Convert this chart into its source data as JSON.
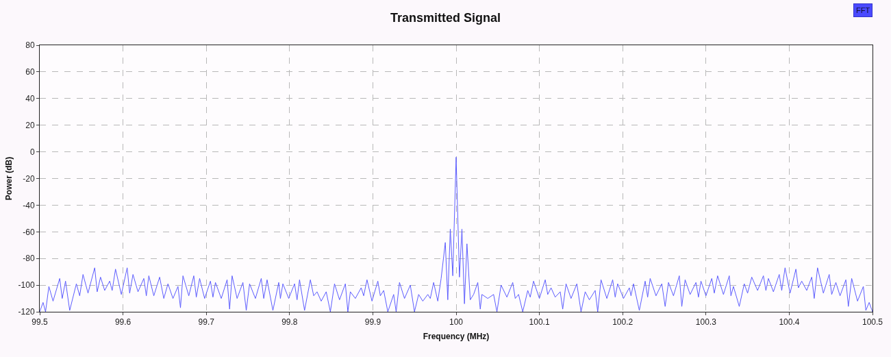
{
  "chart_data": {
    "type": "line",
    "title": "Transmitted Signal",
    "xlabel": "Frequency (MHz)",
    "ylabel": "Power (dB)",
    "annotations": [
      "FFT"
    ],
    "xlim": [
      99.5,
      100.5
    ],
    "xticks": [
      99.5,
      99.6,
      99.7,
      99.8,
      99.9,
      100,
      100.1,
      100.2,
      100.3,
      100.4,
      100.5
    ],
    "ylim": [
      -120,
      80
    ],
    "yticks": [
      -120,
      -100,
      -80,
      -60,
      -40,
      -20,
      0,
      20,
      40,
      60,
      80
    ],
    "grid": true,
    "marker": "none",
    "line_style": "solid",
    "series": [
      {
        "color": "#5c5cff",
        "x": [
          99.5,
          99.504,
          99.507,
          99.511,
          99.516,
          99.524,
          99.527,
          99.531,
          99.536,
          99.544,
          99.548,
          99.552,
          99.558,
          99.566,
          99.569,
          99.573,
          99.578,
          99.584,
          99.587,
          99.591,
          99.598,
          99.605,
          99.608,
          99.612,
          99.618,
          99.625,
          99.628,
          99.631,
          99.637,
          99.644,
          99.649,
          99.654,
          99.66,
          99.666,
          99.669,
          99.672,
          99.679,
          99.685,
          99.688,
          99.692,
          99.698,
          99.705,
          99.708,
          99.711,
          99.718,
          99.725,
          99.728,
          99.731,
          99.737,
          99.744,
          99.748,
          99.752,
          99.759,
          99.766,
          99.769,
          99.773,
          99.78,
          99.787,
          99.789,
          99.792,
          99.799,
          99.806,
          99.809,
          99.812,
          99.818,
          99.825,
          99.829,
          99.833,
          99.838,
          99.844,
          99.849,
          99.854,
          99.86,
          99.867,
          99.87,
          99.873,
          99.879,
          99.886,
          99.889,
          99.893,
          99.899,
          99.906,
          99.909,
          99.913,
          99.918,
          99.925,
          99.928,
          99.932,
          99.938,
          99.945,
          99.95,
          99.955,
          99.96,
          99.966,
          99.969,
          99.973,
          99.978,
          99.982,
          99.987,
          99.99,
          99.993,
          99.996,
          100.0,
          100.004,
          100.007,
          100.01,
          100.013,
          100.017,
          100.021,
          100.026,
          100.029,
          100.031,
          100.038,
          100.045,
          100.049,
          100.054,
          100.061,
          100.068,
          100.071,
          100.075,
          100.08,
          100.086,
          100.089,
          100.093,
          100.1,
          100.107,
          100.11,
          100.114,
          100.119,
          100.125,
          100.128,
          100.132,
          100.138,
          100.145,
          100.15,
          100.155,
          100.16,
          100.167,
          100.17,
          100.174,
          100.181,
          100.188,
          100.191,
          100.194,
          100.201,
          100.208,
          100.21,
          100.213,
          100.22,
          100.227,
          100.23,
          100.233,
          100.24,
          100.247,
          100.251,
          100.255,
          100.261,
          100.268,
          100.271,
          100.275,
          100.281,
          100.288,
          100.291,
          100.294,
          100.3,
          100.307,
          100.31,
          100.314,
          100.321,
          100.328,
          100.33,
          100.333,
          100.34,
          100.346,
          100.35,
          100.355,
          100.362,
          100.369,
          100.372,
          100.375,
          100.381,
          100.388,
          100.391,
          100.395,
          100.401,
          100.408,
          100.411,
          100.415,
          100.421,
          100.427,
          100.43,
          100.434,
          100.441,
          100.448,
          100.451,
          100.456,
          100.461,
          100.468,
          100.471,
          100.475,
          100.482,
          100.489,
          100.492,
          100.496,
          100.5
        ],
        "values": [
          -120,
          -113,
          -120,
          -101,
          -112,
          -95,
          -110,
          -97,
          -119,
          -99,
          -108,
          -92,
          -106,
          -87,
          -105,
          -94,
          -104,
          -97,
          -104,
          -88,
          -107,
          -87,
          -106,
          -92,
          -105,
          -95,
          -108,
          -93,
          -108,
          -94,
          -110,
          -99,
          -110,
          -101,
          -117,
          -93,
          -108,
          -93,
          -109,
          -95,
          -110,
          -97,
          -109,
          -98,
          -110,
          -96,
          -118,
          -93,
          -110,
          -98,
          -119,
          -99,
          -110,
          -95,
          -110,
          -96,
          -119,
          -98,
          -110,
          -99,
          -110,
          -99,
          -111,
          -96,
          -119,
          -96,
          -108,
          -105,
          -112,
          -105,
          -120,
          -99,
          -111,
          -99,
          -120,
          -105,
          -110,
          -102,
          -108,
          -96,
          -112,
          -97,
          -108,
          -104,
          -120,
          -107,
          -120,
          -98,
          -110,
          -100,
          -120,
          -107,
          -112,
          -107,
          -110,
          -98,
          -112,
          -95,
          -68,
          -111,
          -58,
          -93,
          -4,
          -94,
          -58,
          -114,
          -69,
          -111,
          -107,
          -98,
          -118,
          -107,
          -110,
          -107,
          -120,
          -100,
          -109,
          -98,
          -110,
          -107,
          -120,
          -104,
          -109,
          -97,
          -110,
          -96,
          -107,
          -102,
          -109,
          -105,
          -118,
          -99,
          -110,
          -99,
          -120,
          -105,
          -111,
          -104,
          -120,
          -96,
          -110,
          -96,
          -109,
          -99,
          -110,
          -102,
          -108,
          -99,
          -119,
          -97,
          -109,
          -95,
          -108,
          -99,
          -116,
          -98,
          -108,
          -93,
          -116,
          -96,
          -107,
          -98,
          -109,
          -97,
          -108,
          -95,
          -106,
          -93,
          -107,
          -93,
          -108,
          -101,
          -116,
          -99,
          -106,
          -94,
          -104,
          -93,
          -104,
          -95,
          -105,
          -92,
          -104,
          -87,
          -106,
          -88,
          -102,
          -97,
          -104,
          -94,
          -110,
          -87,
          -106,
          -92,
          -107,
          -98,
          -108,
          -96,
          -116,
          -95,
          -112,
          -101,
          -119,
          -113,
          -120
        ]
      }
    ]
  }
}
